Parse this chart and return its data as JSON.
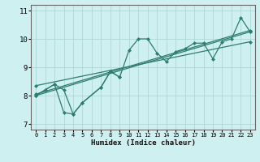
{
  "xlabel": "Humidex (Indice chaleur)",
  "bg_color": "#cff0f0",
  "line_color": "#2e7d6e",
  "grid_color": "#aed8d8",
  "xlim": [
    -0.5,
    23.5
  ],
  "ylim": [
    6.8,
    11.2
  ],
  "yticks": [
    7,
    8,
    9,
    10,
    11
  ],
  "xticks": [
    0,
    1,
    2,
    3,
    4,
    5,
    6,
    7,
    8,
    9,
    10,
    11,
    12,
    13,
    14,
    15,
    16,
    17,
    18,
    19,
    20,
    21,
    22,
    23
  ],
  "series1_x": [
    0,
    1,
    2,
    3,
    4,
    5,
    7,
    8,
    9,
    10,
    11,
    12,
    13,
    14,
    15,
    16,
    17,
    18,
    19,
    20,
    21,
    22,
    23
  ],
  "series1_y": [
    8.0,
    8.2,
    8.4,
    7.4,
    7.35,
    7.75,
    8.3,
    8.85,
    8.65,
    9.6,
    10.0,
    10.0,
    9.5,
    9.2,
    9.55,
    9.65,
    9.85,
    9.85,
    9.3,
    9.9,
    10.0,
    10.75,
    10.25
  ],
  "series2_x": [
    0,
    1,
    2,
    3,
    4,
    5,
    7,
    8,
    9
  ],
  "series2_y": [
    8.0,
    8.2,
    8.4,
    8.2,
    7.35,
    7.75,
    8.3,
    8.85,
    8.65
  ],
  "trend1_x": [
    0,
    23
  ],
  "trend1_y": [
    8.0,
    10.25
  ],
  "trend2_x": [
    0,
    23
  ],
  "trend2_y": [
    8.35,
    9.9
  ],
  "trend3_x": [
    0,
    23
  ],
  "trend3_y": [
    8.05,
    10.3
  ]
}
